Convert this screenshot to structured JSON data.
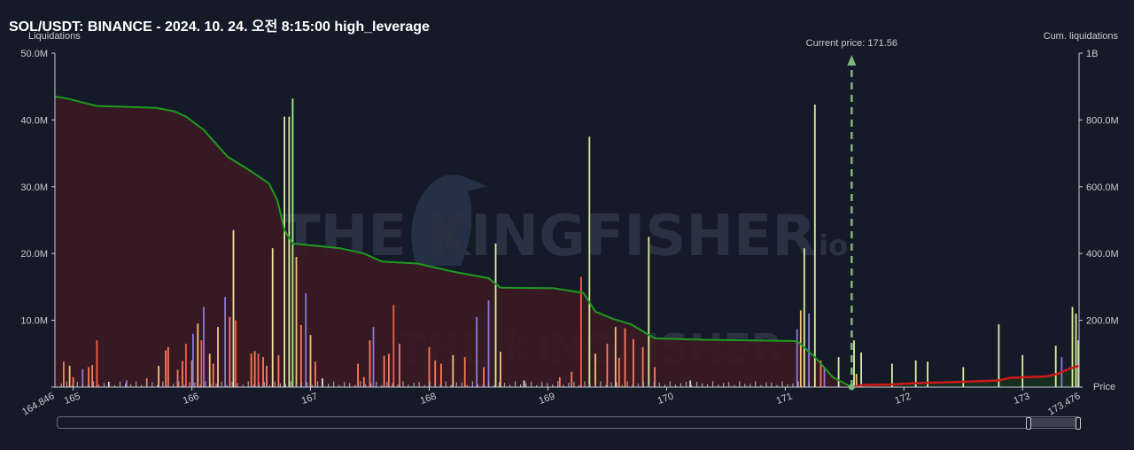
{
  "title": "SOL/USDT: BINANCE - 2024. 10. 24. 오전 8:15:00 high_leverage",
  "watermark": {
    "main": "THE KINGFISHER",
    "suffix": ".io"
  },
  "chart_data": {
    "type": "bar",
    "ylabel_left": "Liquidations",
    "ylabel_right": "Cum. liquidations",
    "xlabel": "Price",
    "xlim": [
      164.846,
      173.476
    ],
    "x_range_labels": [
      "164.846",
      "173.476"
    ],
    "x_ticks": [
      165,
      166,
      167,
      168,
      169,
      170,
      171,
      172,
      173
    ],
    "ylim_left": [
      0,
      50000000
    ],
    "ylim_right": [
      0,
      1000000000
    ],
    "y_ticks_left": [
      "",
      "10.0M",
      "20.0M",
      "30.0M",
      "40.0M",
      "50.0M"
    ],
    "y_ticks_right": [
      "",
      "200.0M",
      "400.0M",
      "600.0M",
      "800.0M",
      "1B"
    ],
    "current_price": 171.56,
    "current_price_label": "Current price: 171.56",
    "cumulative_short_side": {
      "color": "#1f9a1f",
      "points": [
        [
          164.846,
          43.5
        ],
        [
          164.95,
          43.2
        ],
        [
          165.2,
          42.1
        ],
        [
          165.7,
          41.8
        ],
        [
          165.85,
          41.3
        ],
        [
          165.95,
          40.5
        ],
        [
          166.1,
          38.5
        ],
        [
          166.3,
          34.5
        ],
        [
          166.5,
          32.3
        ],
        [
          166.65,
          30.5
        ],
        [
          166.72,
          28.0
        ],
        [
          166.78,
          23.5
        ],
        [
          166.85,
          21.5
        ],
        [
          167.25,
          20.8
        ],
        [
          167.45,
          20.0
        ],
        [
          167.6,
          18.8
        ],
        [
          167.9,
          18.5
        ],
        [
          168.2,
          17.3
        ],
        [
          168.5,
          16.3
        ],
        [
          168.6,
          14.9
        ],
        [
          169.05,
          14.8
        ],
        [
          169.3,
          14.1
        ],
        [
          169.4,
          11.3
        ],
        [
          169.55,
          10.2
        ],
        [
          169.7,
          9.4
        ],
        [
          169.9,
          7.3
        ],
        [
          170.3,
          7.1
        ],
        [
          171.1,
          6.9
        ],
        [
          171.25,
          4.5
        ],
        [
          171.4,
          1.5
        ],
        [
          171.56,
          0.0
        ]
      ]
    },
    "cumulative_long_side": {
      "color": "#d01818",
      "points": [
        [
          171.56,
          0.0
        ],
        [
          171.65,
          0.3
        ],
        [
          171.9,
          0.4
        ],
        [
          172.1,
          0.6
        ],
        [
          172.5,
          0.8
        ],
        [
          172.8,
          1.0
        ],
        [
          172.9,
          1.4
        ],
        [
          173.2,
          1.6
        ],
        [
          173.3,
          2.0
        ],
        [
          173.4,
          2.8
        ],
        [
          173.476,
          3.2
        ]
      ]
    },
    "bars": [
      [
        164.92,
        3.8,
        "#ff7a5a"
      ],
      [
        164.97,
        3.2,
        "#f5c07a"
      ],
      [
        165.0,
        1.5,
        "#ff7a5a"
      ],
      [
        165.08,
        2.7,
        "#8a7ad8"
      ],
      [
        165.13,
        3.0,
        "#ff7a5a"
      ],
      [
        165.16,
        3.3,
        "#ff7a5a"
      ],
      [
        165.2,
        7.0,
        "#ff5a4a"
      ],
      [
        165.3,
        0.8,
        "#e0e0e0"
      ],
      [
        165.45,
        1.0,
        "#8a7ad8"
      ],
      [
        165.62,
        1.3,
        "#ff7a5a"
      ],
      [
        165.72,
        3.2,
        "#f5c07a"
      ],
      [
        165.78,
        5.5,
        "#ff7a5a"
      ],
      [
        165.8,
        6.0,
        "#ff7a5a"
      ],
      [
        165.88,
        2.6,
        "#ff7a5a"
      ],
      [
        165.92,
        3.9,
        "#ff7a5a"
      ],
      [
        165.95,
        6.5,
        "#ff5a4a"
      ],
      [
        166.0,
        4.0,
        "#ff7a5a"
      ],
      [
        166.01,
        8.0,
        "#8a7ad8"
      ],
      [
        166.05,
        9.5,
        "#f5c07a"
      ],
      [
        166.08,
        7.0,
        "#ff5a4a"
      ],
      [
        166.1,
        12.0,
        "#8a7ad8"
      ],
      [
        166.15,
        5.0,
        "#f5c07a"
      ],
      [
        166.18,
        3.5,
        "#ff7a5a"
      ],
      [
        166.22,
        9.0,
        "#f5c07a"
      ],
      [
        166.28,
        13.5,
        "#8a7ad8"
      ],
      [
        166.32,
        10.5,
        "#ff7a5a"
      ],
      [
        166.35,
        23.5,
        "#f5e0a0"
      ],
      [
        166.37,
        10.0,
        "#ff5a4a"
      ],
      [
        166.5,
        5.0,
        "#ff7a5a"
      ],
      [
        166.53,
        5.4,
        "#ff7a5a"
      ],
      [
        166.56,
        5.0,
        "#ff5a4a"
      ],
      [
        166.6,
        4.5,
        "#ff7a5a"
      ],
      [
        166.63,
        3.2,
        "#ff7a5a"
      ],
      [
        166.68,
        20.8,
        "#f5e0a0"
      ],
      [
        166.73,
        4.8,
        "#ff7a5a"
      ],
      [
        166.78,
        40.5,
        "#d8f0a0"
      ],
      [
        166.82,
        40.5,
        "#d8f0a0"
      ],
      [
        166.85,
        43.2,
        "#aaf08a"
      ],
      [
        166.88,
        19.5,
        "#f5c07a"
      ],
      [
        166.92,
        9.3,
        "#ff7a5a"
      ],
      [
        166.96,
        14.0,
        "#8a7ad8"
      ],
      [
        167.0,
        7.8,
        "#f5c07a"
      ],
      [
        167.04,
        3.8,
        "#ff7a5a"
      ],
      [
        167.1,
        1.3,
        "#e0e0e0"
      ],
      [
        167.4,
        3.5,
        "#ff7a5a"
      ],
      [
        167.45,
        1.5,
        "#ff7a5a"
      ],
      [
        167.5,
        7.0,
        "#ff7a5a"
      ],
      [
        167.53,
        9.0,
        "#8a7ad8"
      ],
      [
        167.62,
        4.7,
        "#ff7a5a"
      ],
      [
        167.66,
        5.0,
        "#ff7a5a"
      ],
      [
        167.7,
        12.3,
        "#ff5a4a"
      ],
      [
        167.75,
        6.5,
        "#ff7a5a"
      ],
      [
        168.0,
        6.0,
        "#ff7a5a"
      ],
      [
        168.05,
        4.0,
        "#ff7a5a"
      ],
      [
        168.1,
        3.5,
        "#ff7a5a"
      ],
      [
        168.2,
        4.8,
        "#f5c07a"
      ],
      [
        168.3,
        4.5,
        "#ff7a5a"
      ],
      [
        168.4,
        10.5,
        "#8a7ad8"
      ],
      [
        168.46,
        3.0,
        "#ff7a5a"
      ],
      [
        168.5,
        13.0,
        "#8a7ad8"
      ],
      [
        168.56,
        21.5,
        "#d8f0a0"
      ],
      [
        168.6,
        5.3,
        "#f5c07a"
      ],
      [
        168.8,
        1.0,
        "#e0e0e0"
      ],
      [
        169.1,
        1.5,
        "#ff7a5a"
      ],
      [
        169.2,
        2.3,
        "#ff7a5a"
      ],
      [
        169.28,
        16.5,
        "#ff5a4a"
      ],
      [
        169.35,
        37.5,
        "#d8f0a0"
      ],
      [
        169.4,
        5.0,
        "#f5c07a"
      ],
      [
        169.5,
        6.5,
        "#ff7a5a"
      ],
      [
        169.57,
        9.0,
        "#f5c07a"
      ],
      [
        169.6,
        4.4,
        "#ff7a5a"
      ],
      [
        169.65,
        8.8,
        "#ff7a5a"
      ],
      [
        169.72,
        7.2,
        "#ff7a5a"
      ],
      [
        169.8,
        6.0,
        "#ff7a5a"
      ],
      [
        169.85,
        22.5,
        "#d8f0a0"
      ],
      [
        169.9,
        3.0,
        "#ff7a5a"
      ],
      [
        170.2,
        1.0,
        "#e0e0e0"
      ],
      [
        171.1,
        8.7,
        "#8a7ad8"
      ],
      [
        171.13,
        11.5,
        "#f5c07a"
      ],
      [
        171.16,
        20.8,
        "#d8f0a0"
      ],
      [
        171.2,
        11.0,
        "#8a7ad8"
      ],
      [
        171.25,
        42.3,
        "#d8f0a0"
      ],
      [
        171.3,
        4.0,
        "#ff7a5a"
      ],
      [
        171.33,
        3.0,
        "#8a7ad8"
      ],
      [
        171.45,
        4.5,
        "#d8f0a0"
      ],
      [
        171.58,
        7.0,
        "#d8f0a0"
      ],
      [
        171.6,
        2.0,
        "#f5c07a"
      ],
      [
        171.64,
        5.2,
        "#d8f0a0"
      ],
      [
        171.9,
        3.5,
        "#d8f0a0"
      ],
      [
        172.1,
        4.0,
        "#d8f0a0"
      ],
      [
        172.2,
        3.8,
        "#d8f0a0"
      ],
      [
        172.5,
        3.0,
        "#d8f0a0"
      ],
      [
        172.8,
        9.4,
        "#d8f0a0"
      ],
      [
        173.0,
        4.8,
        "#d8f0a0"
      ],
      [
        173.28,
        6.2,
        "#d8f0a0"
      ],
      [
        173.33,
        4.5,
        "#8a7ad8"
      ],
      [
        173.42,
        12.0,
        "#d8f0a0"
      ],
      [
        173.45,
        11.0,
        "#d8f0a0"
      ],
      [
        173.47,
        7.0,
        "#d8f0a0"
      ]
    ]
  }
}
